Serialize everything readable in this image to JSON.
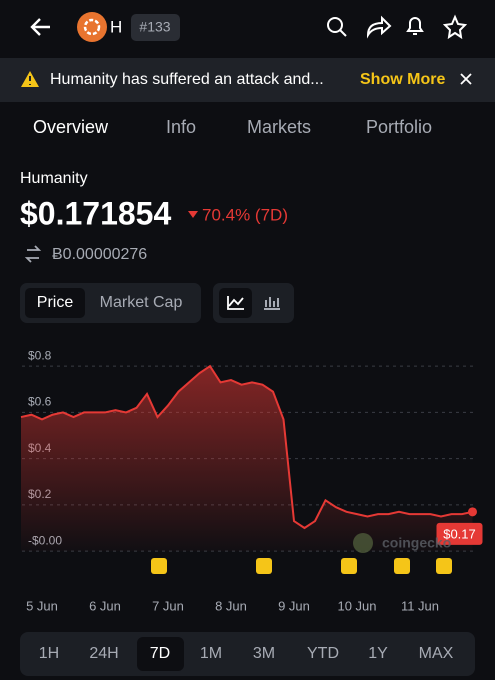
{
  "header": {
    "symbol": "H",
    "rank": "#133"
  },
  "banner": {
    "text": "Humanity has suffered an attack and...",
    "action": "Show More"
  },
  "tabs": [
    "Overview",
    "Info",
    "Markets",
    "Portfolio"
  ],
  "coin": {
    "name": "Humanity",
    "price": "$0.171854",
    "change": "70.4% (7D)",
    "btc_price": "Ƀ0.00000276"
  },
  "chart_toggle": [
    "Price",
    "Market Cap"
  ],
  "watermark": "coingecko",
  "chart_data": {
    "type": "line",
    "categories": [
      null,
      null,
      "5 Jun",
      null,
      null,
      null,
      null,
      null,
      "6 Jun",
      null,
      null,
      null,
      null,
      null,
      "7 Jun",
      null,
      null,
      null,
      null,
      null,
      "8 Jun",
      null,
      null,
      null,
      null,
      null,
      "9 Jun",
      null,
      null,
      null,
      null,
      null,
      "10 Jun",
      null,
      null,
      null,
      null,
      null,
      "11 Jun",
      null,
      null,
      null,
      null,
      null
    ],
    "values": [
      0.58,
      0.59,
      0.57,
      0.59,
      0.6,
      0.58,
      0.6,
      0.6,
      0.6,
      0.61,
      0.6,
      0.62,
      0.68,
      0.58,
      0.63,
      0.69,
      0.73,
      0.77,
      0.8,
      0.73,
      0.74,
      0.72,
      0.73,
      0.72,
      0.69,
      0.57,
      0.13,
      0.1,
      0.13,
      0.22,
      0.19,
      0.17,
      0.16,
      0.15,
      0.16,
      0.16,
      0.17,
      0.16,
      0.16,
      0.16,
      0.15,
      0.16,
      0.16,
      0.17
    ],
    "value_labels": [
      null,
      null,
      null,
      null,
      null,
      null,
      null,
      null,
      null,
      null,
      null,
      null,
      null,
      null,
      null,
      null,
      null,
      null,
      null,
      null,
      null,
      null,
      null,
      null,
      null,
      null,
      null,
      null,
      null,
      null,
      null,
      null,
      null,
      null,
      null,
      null,
      null,
      null,
      null,
      null,
      null,
      null,
      null,
      "$0.17"
    ],
    "color": "#e53935",
    "ylim": [
      -0.06,
      0.87
    ],
    "yticks": [
      {
        "value": 0,
        "label": "-$0.00"
      },
      {
        "value": 0.2,
        "label": "$0.2"
      },
      {
        "value": 0.4,
        "label": "$0.4"
      },
      {
        "value": 0.6,
        "label": "$0.6"
      },
      {
        "value": 0.8,
        "label": "$0.8"
      }
    ],
    "grid": true
  },
  "ranges": [
    "1H",
    "24H",
    "7D",
    "1M",
    "3M",
    "YTD",
    "1Y",
    "MAX"
  ]
}
